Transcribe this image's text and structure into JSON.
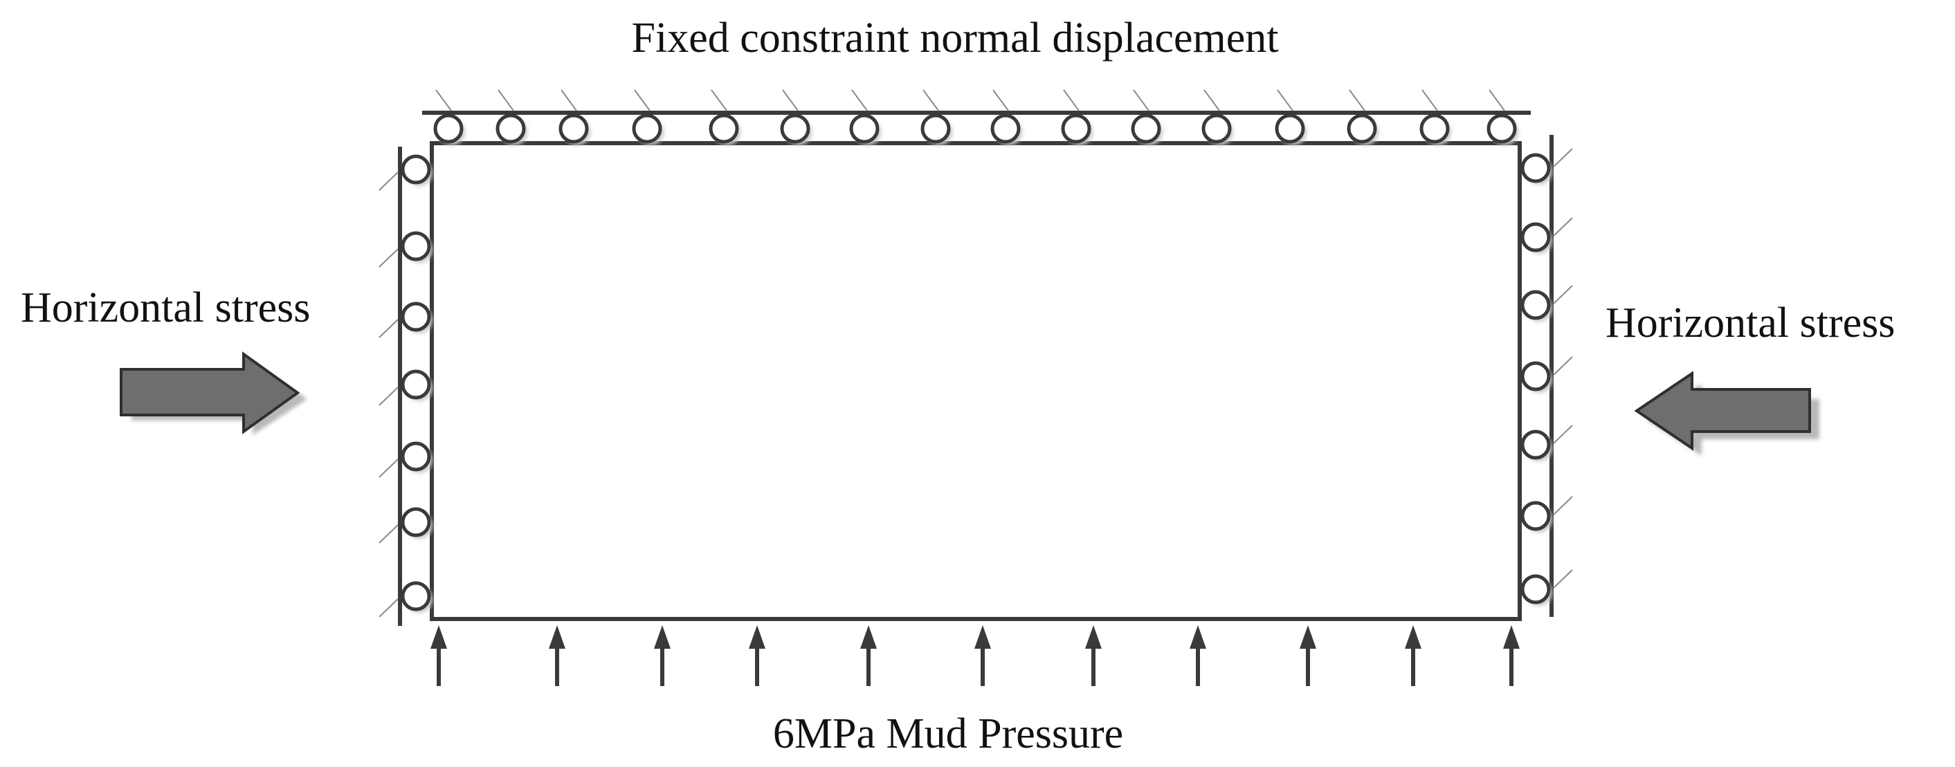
{
  "labels": {
    "top": "Fixed constraint normal displacement",
    "left": "Horizontal stress",
    "right": "Horizontal stress",
    "bottom": "6MPa Mud Pressure"
  },
  "colors": {
    "line": "#3a3a3a",
    "arrow_fill": "#6e6e6e",
    "arrow_shadow": "#b8b8b8",
    "roller_shadow": "#c8c8c8",
    "hatch": "#8a8a8a"
  },
  "icons": {
    "roller": "circle-roller",
    "load_arrow": "block-arrow",
    "pressure_arrow": "up-arrow"
  },
  "counts": {
    "top_rollers": 16,
    "left_rollers": 7,
    "right_rollers": 7,
    "pressure_arrows": 11
  }
}
